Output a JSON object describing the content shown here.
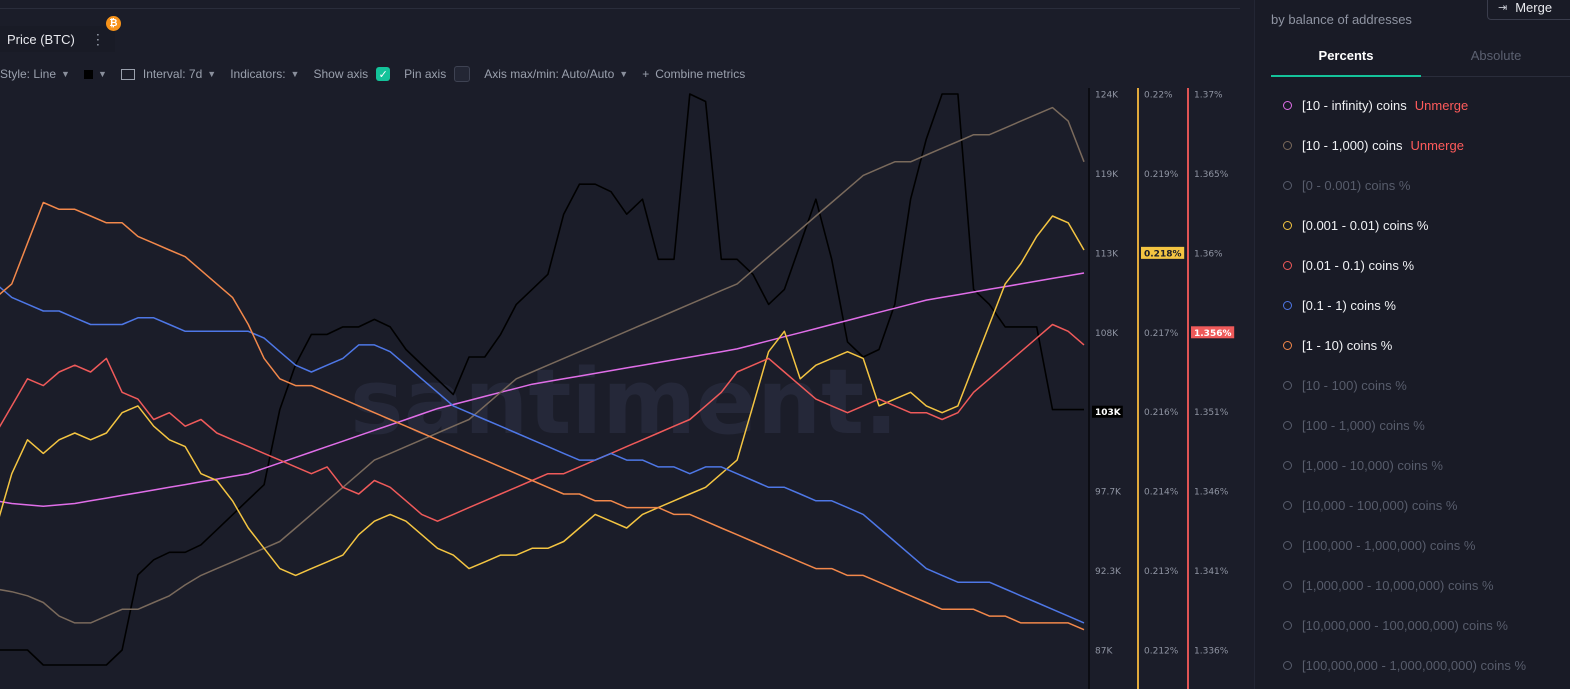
{
  "metric": {
    "label": "Price (BTC)",
    "badge": "₿",
    "menu": "⋮"
  },
  "toolbar": {
    "style_label": "Style: Line",
    "interval_label": "Interval: 7d",
    "indicators_label": "Indicators:",
    "show_axis_label": "Show axis",
    "pin_axis_label": "Pin axis",
    "axis_minmax_label": "Axis max/min: Auto/Auto",
    "combine_label": "Combine metrics",
    "check_mark": "✓",
    "plus": "+"
  },
  "sidebar": {
    "subtitle": "by balance of addresses",
    "merge_label": "Merge",
    "tabs": [
      "Percents",
      "Absolute"
    ],
    "active_tab": "Percents",
    "items": [
      {
        "label": "[10 - infinity) coins",
        "action": "Unmerge",
        "color": "#e06ee8",
        "active": true
      },
      {
        "label": "[10 - 1,000) coins",
        "action": "Unmerge",
        "color": "#7a6a5c",
        "active": true
      },
      {
        "label": "[0 - 0.001) coins %",
        "color": "#575c6b",
        "active": false
      },
      {
        "label": "[0.001 - 0.01) coins %",
        "color": "#f4c542",
        "active": true
      },
      {
        "label": "[0.01 - 0.1) coins %",
        "color": "#ef5a5a",
        "active": true
      },
      {
        "label": "[0.1 - 1) coins %",
        "color": "#4e77e6",
        "active": true
      },
      {
        "label": "[1 - 10) coins %",
        "color": "#f2884b",
        "active": true
      },
      {
        "label": "[10 - 100) coins %",
        "active": false
      },
      {
        "label": "[100 - 1,000) coins %",
        "active": false
      },
      {
        "label": "[1,000 - 10,000) coins %",
        "active": false
      },
      {
        "label": "[10,000 - 100,000) coins %",
        "active": false
      },
      {
        "label": "[100,000 - 1,000,000) coins %",
        "active": false
      },
      {
        "label": "[1,000,000 - 10,000,000) coins %",
        "active": false
      },
      {
        "label": "[10,000,000 - 100,000,000) coins %",
        "active": false
      },
      {
        "label": "[100,000,000 - 1,000,000,000) coins %",
        "active": false
      }
    ]
  },
  "chart_data": {
    "type": "line",
    "watermark": "santiment.",
    "price_axis": {
      "ticks": [
        "124K",
        "119K",
        "113K",
        "108K",
        "103K",
        "97.7K",
        "92.3K",
        "87K"
      ],
      "current": "103K",
      "ylim": [
        87000,
        124000
      ]
    },
    "pct_axis_1": {
      "ticks": [
        "0.22%",
        "0.219%",
        "0.218%",
        "0.217%",
        "0.216%",
        "0.214%",
        "0.213%",
        "0.212%"
      ],
      "current": "0.218%",
      "color": "#e1a93b",
      "ylim": [
        0.212,
        0.22
      ]
    },
    "pct_axis_2": {
      "ticks": [
        "1.37%",
        "1.365%",
        "1.36%",
        "1.356%",
        "1.351%",
        "1.346%",
        "1.341%",
        "1.336%"
      ],
      "current": "1.356%",
      "color": "#e05454",
      "ylim": [
        1.336,
        1.37
      ]
    },
    "series": [
      {
        "name": "Price (BTC)",
        "color": "#000000",
        "values": [
          87000,
          87000,
          87000,
          86000,
          86000,
          86000,
          86000,
          86000,
          87000,
          92000,
          93000,
          93500,
          93500,
          94000,
          95000,
          96000,
          97000,
          98000,
          103000,
          106000,
          108000,
          108000,
          108500,
          108500,
          109000,
          108500,
          107000,
          106000,
          105000,
          104000,
          106500,
          106500,
          108000,
          110000,
          111000,
          112000,
          116000,
          118000,
          118000,
          117500,
          116000,
          117000,
          113000,
          113000,
          124000,
          123500,
          113000,
          113000,
          112000,
          110000,
          111000,
          114000,
          117000,
          113000,
          107500,
          106500,
          107000,
          110000,
          117000,
          121000,
          124000,
          124000,
          111000,
          110000,
          108500,
          108500,
          108500,
          103000,
          103000,
          103000
        ]
      },
      {
        "name": "[10 - infinity) coins",
        "color": "#e06ee8",
        "values": [
          97.0,
          96.8,
          96.7,
          96.6,
          96.7,
          96.8,
          97.0,
          97.2,
          97.4,
          97.6,
          97.8,
          98.0,
          98.2,
          98.4,
          98.6,
          98.8,
          99.0,
          99.4,
          99.8,
          100.2,
          100.6,
          101.0,
          101.4,
          101.8,
          102.2,
          102.6,
          103.0,
          103.4,
          103.8,
          104.1,
          104.4,
          104.7,
          105.0,
          105.3,
          105.6,
          105.8,
          106.0,
          106.2,
          106.4,
          106.6,
          106.8,
          107.0,
          107.2,
          107.4,
          107.6,
          107.8,
          108.0,
          108.2,
          108.5,
          108.8,
          109.1,
          109.4,
          109.7,
          110.0,
          110.3,
          110.6,
          110.9,
          111.2,
          111.5,
          111.8,
          112.0,
          112.2,
          112.4,
          112.6,
          112.8,
          113.0,
          113.2,
          113.4,
          113.6,
          113.8
        ]
      },
      {
        "name": "[10 - 1,000) coins",
        "color": "#7a6a5c",
        "values": [
          90.5,
          90.3,
          90.0,
          89.5,
          88.5,
          88.0,
          88.0,
          88.5,
          89.0,
          89.0,
          89.5,
          90.0,
          90.8,
          91.5,
          92.0,
          92.5,
          93.0,
          93.5,
          94.0,
          95.0,
          96.0,
          97.0,
          98.0,
          99.0,
          100.0,
          100.5,
          101.0,
          101.5,
          102.0,
          102.5,
          103.0,
          104.0,
          105.0,
          106.0,
          106.5,
          107.0,
          107.5,
          108.0,
          108.5,
          109.0,
          109.5,
          110.0,
          110.5,
          111.0,
          111.5,
          112.0,
          112.5,
          113.0,
          114.0,
          115.0,
          116.0,
          117.0,
          118.0,
          119.0,
          120.0,
          121.0,
          121.5,
          122.0,
          122.0,
          122.5,
          123.0,
          123.5,
          124.0,
          124.0,
          124.5,
          125.0,
          125.5,
          126.0,
          125.0,
          122.0
        ]
      },
      {
        "name": "[0.001 - 0.01) coins %",
        "color": "#f4c542",
        "values": [
          95.0,
          99.0,
          101.5,
          100.5,
          101.5,
          102.0,
          101.5,
          102.0,
          103.5,
          104.0,
          102.5,
          101.5,
          101.0,
          99.0,
          98.5,
          97.0,
          95.0,
          93.5,
          92.0,
          91.5,
          92.0,
          92.5,
          93.0,
          94.5,
          95.5,
          96.0,
          95.5,
          94.5,
          93.5,
          93.0,
          92.0,
          92.5,
          93.0,
          93.0,
          93.5,
          93.5,
          94.0,
          95.0,
          96.0,
          95.5,
          95.0,
          96.0,
          96.5,
          97.0,
          97.5,
          98.0,
          99.0,
          100.0,
          104.0,
          108.0,
          109.5,
          106.0,
          107.0,
          107.5,
          108.0,
          107.5,
          104.0,
          104.5,
          105.0,
          104.0,
          103.5,
          104.0,
          107.0,
          110.0,
          113.0,
          114.5,
          116.5,
          118.0,
          117.5,
          115.5
        ]
      },
      {
        "name": "[0.01 - 0.1) coins %",
        "color": "#ef5a5a",
        "values": [
          102.0,
          104.0,
          106.0,
          105.5,
          106.5,
          107.0,
          106.5,
          107.5,
          105.0,
          104.5,
          103.0,
          103.5,
          102.5,
          103.0,
          102.0,
          101.5,
          101.0,
          100.5,
          100.0,
          99.5,
          99.0,
          99.5,
          98.0,
          97.5,
          98.5,
          98.0,
          97.0,
          96.0,
          95.5,
          96.0,
          96.5,
          97.0,
          97.5,
          98.0,
          98.5,
          99.0,
          99.0,
          99.5,
          100.0,
          100.5,
          101.0,
          101.5,
          102.0,
          102.5,
          103.0,
          104.0,
          105.0,
          106.5,
          107.0,
          107.5,
          106.5,
          105.5,
          104.5,
          104.0,
          103.5,
          104.0,
          104.5,
          104.0,
          103.5,
          103.5,
          103.0,
          103.5,
          105.0,
          106.0,
          107.0,
          108.0,
          109.0,
          110.0,
          109.5,
          108.5
        ]
      },
      {
        "name": "[0.1 - 1) coins %",
        "color": "#4e77e6",
        "values": [
          113.0,
          112.0,
          111.5,
          111.0,
          111.0,
          110.5,
          110.0,
          110.0,
          110.0,
          110.5,
          110.5,
          110.0,
          109.5,
          109.5,
          109.5,
          109.5,
          109.5,
          109.0,
          108.0,
          107.0,
          106.5,
          107.0,
          107.5,
          108.5,
          108.5,
          108.0,
          107.0,
          106.0,
          105.0,
          104.0,
          103.5,
          103.0,
          102.5,
          102.0,
          101.5,
          101.0,
          100.5,
          100.0,
          100.0,
          100.5,
          100.0,
          100.0,
          99.5,
          99.5,
          99.0,
          99.5,
          99.5,
          99.0,
          98.5,
          98.0,
          98.0,
          97.5,
          97.0,
          97.0,
          96.5,
          96.0,
          95.0,
          94.0,
          93.0,
          92.0,
          91.5,
          91.0,
          91.0,
          91.0,
          90.5,
          90.0,
          89.5,
          89.0,
          88.5,
          88.0
        ]
      },
      {
        "name": "[1 - 10) coins %",
        "color": "#f2884b",
        "values": [
          112.0,
          113.0,
          116.0,
          119.0,
          118.5,
          118.5,
          118.0,
          117.5,
          117.5,
          116.5,
          116.0,
          115.5,
          115.0,
          114.0,
          113.0,
          112.0,
          110.0,
          107.5,
          106.0,
          105.5,
          105.5,
          105.0,
          104.5,
          104.0,
          103.5,
          103.0,
          102.5,
          102.0,
          101.5,
          101.0,
          100.5,
          100.0,
          99.5,
          99.0,
          98.5,
          98.0,
          97.5,
          97.5,
          97.0,
          97.0,
          96.5,
          96.5,
          96.5,
          96.0,
          96.0,
          95.5,
          95.0,
          94.5,
          94.0,
          93.5,
          93.0,
          92.5,
          92.0,
          92.0,
          91.5,
          91.5,
          91.0,
          90.5,
          90.0,
          89.5,
          89.0,
          89.0,
          89.0,
          88.5,
          88.5,
          88.0,
          88.0,
          88.0,
          88.0,
          87.5
        ]
      }
    ]
  }
}
